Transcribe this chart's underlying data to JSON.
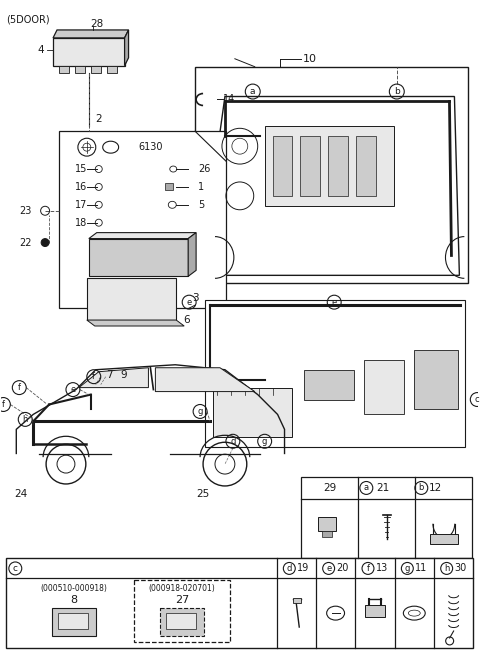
{
  "bg": "#ffffff",
  "lc": "#1a1a1a",
  "gray_light": "#e8e8e8",
  "gray_med": "#cccccc",
  "gray_dark": "#aaaaaa",
  "label_5door": "(5DOOR)",
  "fuse_label": "4",
  "fuse_cover_label": "28",
  "wire_label": "2",
  "engine_box_label": "10",
  "hook_label": "14",
  "ecu_label": "3",
  "dash_label": "6",
  "circle_a": "a",
  "circle_b": "b",
  "circle_c": "c",
  "circle_d": "d",
  "circle_e": "e",
  "circle_f": "f",
  "circle_g": "g",
  "circle_h": "h",
  "inner_parts": {
    "left_nums": [
      "15",
      "16",
      "17",
      "18"
    ],
    "right_nums": [
      "26",
      "1",
      "5"
    ],
    "top_text": "6130"
  },
  "callouts_left": [
    "23",
    "22"
  ],
  "rear_car_nums": [
    "7",
    "9",
    "24",
    "25"
  ],
  "tbl1_headers": [
    "29",
    "21",
    "12"
  ],
  "tbl1_circles": [
    "a",
    "b"
  ],
  "tbl2_labels": [
    "c",
    "d",
    "e",
    "f",
    "g",
    "h"
  ],
  "tbl2_nums": [
    "19",
    "20",
    "13",
    "11",
    "30"
  ],
  "part_codes": [
    "(000510-000918)",
    "(000918-020701)"
  ],
  "part_nums": [
    "8",
    "27"
  ]
}
